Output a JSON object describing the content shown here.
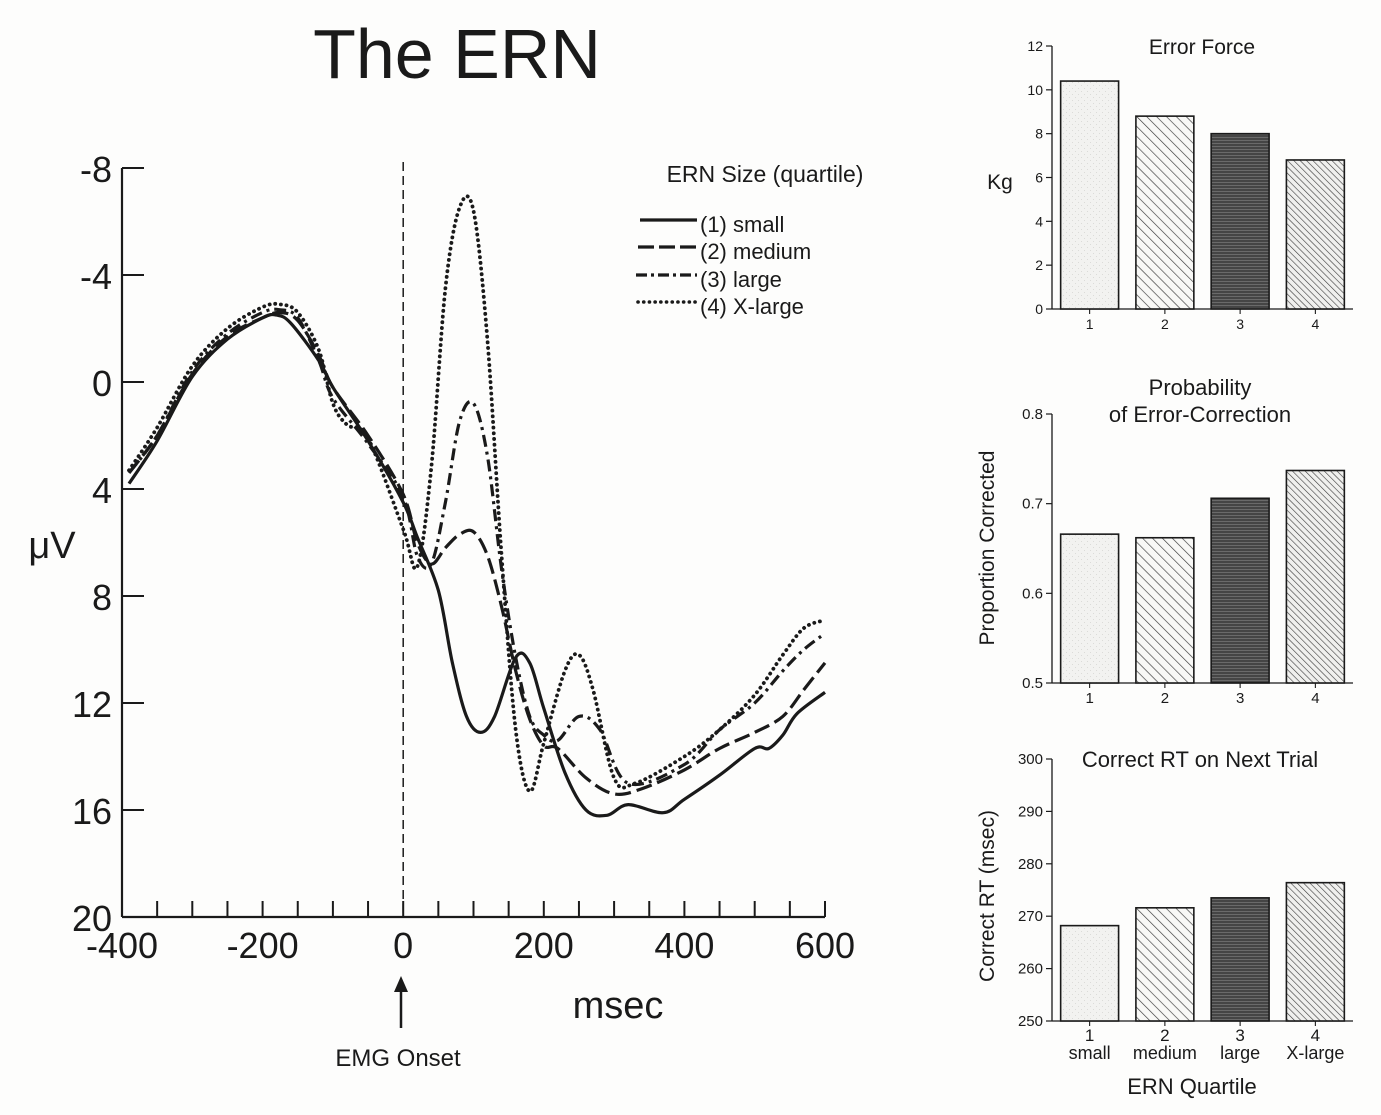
{
  "chart_data": [
    {
      "type": "line",
      "title": "The ERN",
      "xlabel": "msec",
      "ylabel": "μV",
      "xlim": [
        -400,
        600
      ],
      "ylim": [
        -8,
        20
      ],
      "y_inverted": true,
      "x_ticks": [
        "-400",
        "-200",
        "0",
        "200",
        "400",
        "600"
      ],
      "y_ticks": [
        "-8",
        "-4",
        "0",
        "4",
        "8",
        "12",
        "16",
        "20"
      ],
      "legend_title": "ERN Size (quartile)",
      "legend_position": "top-right",
      "annotation": "EMG Onset",
      "annotation_x": 0,
      "grid": false,
      "series": [
        {
          "name": "(1) small",
          "dash": "solid",
          "x": [
            -390,
            -350,
            -300,
            -250,
            -200,
            -180,
            -160,
            -120,
            -100,
            -50,
            0,
            20,
            50,
            70,
            90,
            110,
            130,
            160,
            180,
            200,
            230,
            260,
            290,
            320,
            370,
            400,
            450,
            500,
            520,
            540,
            560,
            600
          ],
          "y": [
            3.8,
            2.2,
            -0.2,
            -1.6,
            -2.4,
            -2.5,
            -2.2,
            -0.8,
            0.2,
            2.2,
            4.5,
            5.8,
            7.8,
            10.5,
            12.5,
            13.1,
            12.5,
            10.3,
            10.5,
            12.2,
            14.6,
            16.0,
            16.2,
            15.8,
            16.1,
            15.6,
            14.7,
            13.7,
            13.7,
            13.2,
            12.4,
            11.6
          ]
        },
        {
          "name": "(2) medium",
          "dash": "long-dash",
          "x": [
            -390,
            -350,
            -300,
            -250,
            -200,
            -175,
            -150,
            -120,
            -100,
            -50,
            0,
            20,
            40,
            60,
            80,
            100,
            120,
            140,
            160,
            180,
            200,
            220,
            260,
            300,
            340,
            400,
            450,
            500,
            540,
            570,
            600
          ],
          "y": [
            3.4,
            2.0,
            -0.3,
            -1.7,
            -2.4,
            -2.6,
            -2.3,
            -1.0,
            0.2,
            2.0,
            4.2,
            6.0,
            6.8,
            6.2,
            5.7,
            5.6,
            6.5,
            8.4,
            10.8,
            12.6,
            13.6,
            13.7,
            14.8,
            15.4,
            15.2,
            14.5,
            13.7,
            13.1,
            12.5,
            11.5,
            10.5
          ]
        },
        {
          "name": "(3) large",
          "dash": "dash-dot",
          "x": [
            -390,
            -350,
            -300,
            -250,
            -200,
            -175,
            -150,
            -120,
            -100,
            -50,
            0,
            20,
            40,
            60,
            80,
            100,
            120,
            140,
            160,
            180,
            200,
            220,
            250,
            280,
            320,
            400,
            450,
            500,
            540,
            570,
            600
          ],
          "y": [
            3.4,
            2.0,
            -0.4,
            -1.8,
            -2.6,
            -2.7,
            -2.4,
            -0.8,
            0.6,
            2.3,
            4.3,
            6.5,
            6.8,
            4.5,
            1.5,
            0.8,
            2.8,
            7.0,
            10.3,
            12.5,
            13.2,
            13.4,
            12.5,
            13.0,
            15.0,
            14.3,
            13.0,
            12.0,
            10.8,
            10.0,
            9.4
          ]
        },
        {
          "name": "(4) X-large",
          "dash": "dotted",
          "x": [
            -390,
            -350,
            -300,
            -250,
            -200,
            -175,
            -150,
            -120,
            -100,
            -80,
            -50,
            0,
            20,
            40,
            60,
            80,
            100,
            120,
            140,
            160,
            180,
            200,
            230,
            250,
            270,
            300,
            330,
            400,
            450,
            500,
            540,
            570,
            600
          ],
          "y": [
            3.3,
            1.7,
            -0.6,
            -2.0,
            -2.8,
            -2.9,
            -2.6,
            -1.2,
            0.8,
            1.6,
            2.1,
            5.5,
            6.9,
            3.2,
            -3.5,
            -6.5,
            -6.4,
            -1.5,
            6.5,
            13.0,
            15.3,
            13.5,
            10.8,
            10.2,
            11.5,
            14.8,
            15.0,
            14.0,
            13.0,
            11.7,
            10.2,
            9.2,
            8.9
          ]
        }
      ]
    },
    {
      "type": "bar",
      "title": "Error Force",
      "ylabel": "Kg",
      "categories": [
        "1",
        "2",
        "3",
        "4"
      ],
      "values": [
        10.4,
        8.8,
        8.0,
        6.8
      ],
      "ylim": [
        0,
        12
      ],
      "y_ticks": [
        "0",
        "2",
        "4",
        "6",
        "8",
        "10",
        "12"
      ]
    },
    {
      "type": "bar",
      "title_lines": [
        "Probability",
        "of Error-Correction"
      ],
      "ylabel": "Proportion Corrected",
      "categories": [
        "1",
        "2",
        "3",
        "4"
      ],
      "values": [
        0.666,
        0.662,
        0.706,
        0.737
      ],
      "ylim": [
        0.5,
        0.8
      ],
      "y_ticks": [
        "0.5",
        "0.6",
        "0.7",
        "0.8"
      ]
    },
    {
      "type": "bar",
      "title": "Correct RT on Next Trial",
      "ylabel": "Correct RT (msec)",
      "xlabel": "ERN Quartile",
      "categories": [
        "1",
        "2",
        "3",
        "4"
      ],
      "category_sublabels": [
        "small",
        "medium",
        "large",
        "X-large"
      ],
      "values": [
        268.2,
        271.6,
        273.5,
        276.4
      ],
      "ylim": [
        250,
        300
      ],
      "y_ticks": [
        "250",
        "260",
        "270",
        "280",
        "290",
        "300"
      ]
    }
  ]
}
